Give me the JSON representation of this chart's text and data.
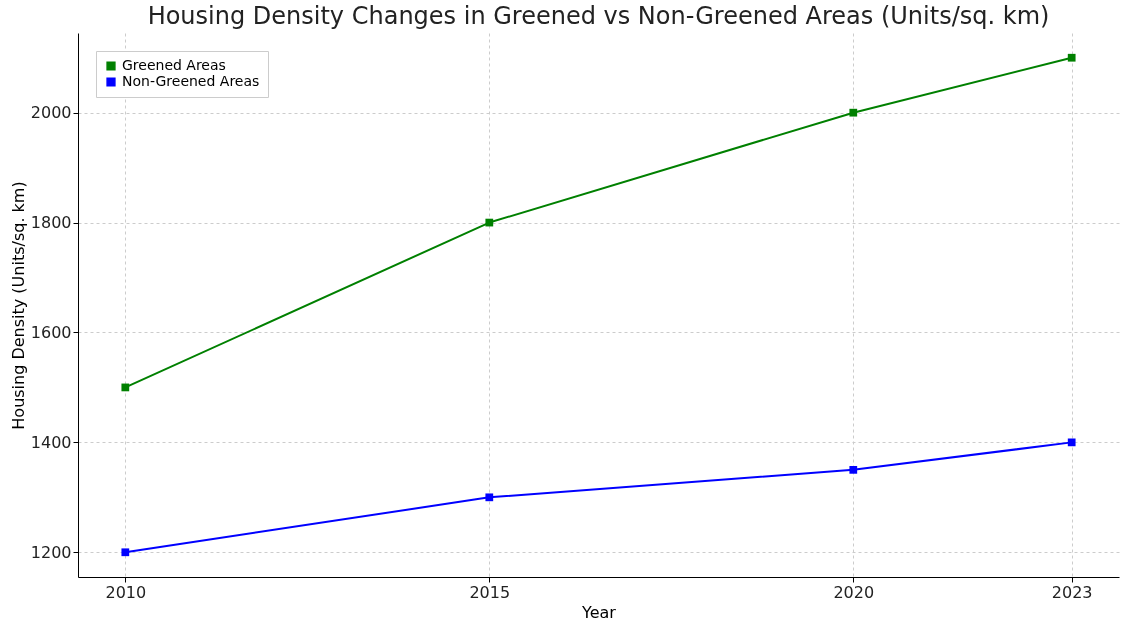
{
  "chart_data": {
    "type": "line",
    "title": "Housing Density Changes in Greened vs Non-Greened Areas (Units/sq. km)",
    "xlabel": "Year",
    "ylabel": "Housing Density (Units/sq. km)",
    "x": [
      2010,
      2015,
      2020,
      2023
    ],
    "series": [
      {
        "name": "Greened Areas",
        "color": "#008000",
        "values": [
          1500,
          1800,
          2000,
          2100
        ]
      },
      {
        "name": "Non-Greened Areas",
        "color": "#0000ff",
        "values": [
          1200,
          1300,
          1350,
          1400
        ]
      }
    ],
    "xlim": [
      2009.35,
      2023.65
    ],
    "ylim": [
      1155,
      2145
    ],
    "xticks": [
      2010,
      2015,
      2020,
      2023
    ],
    "yticks": [
      1200,
      1400,
      1600,
      1800,
      2000
    ],
    "grid": true,
    "legend": "top left",
    "marker": "square",
    "line_style": "solid"
  }
}
